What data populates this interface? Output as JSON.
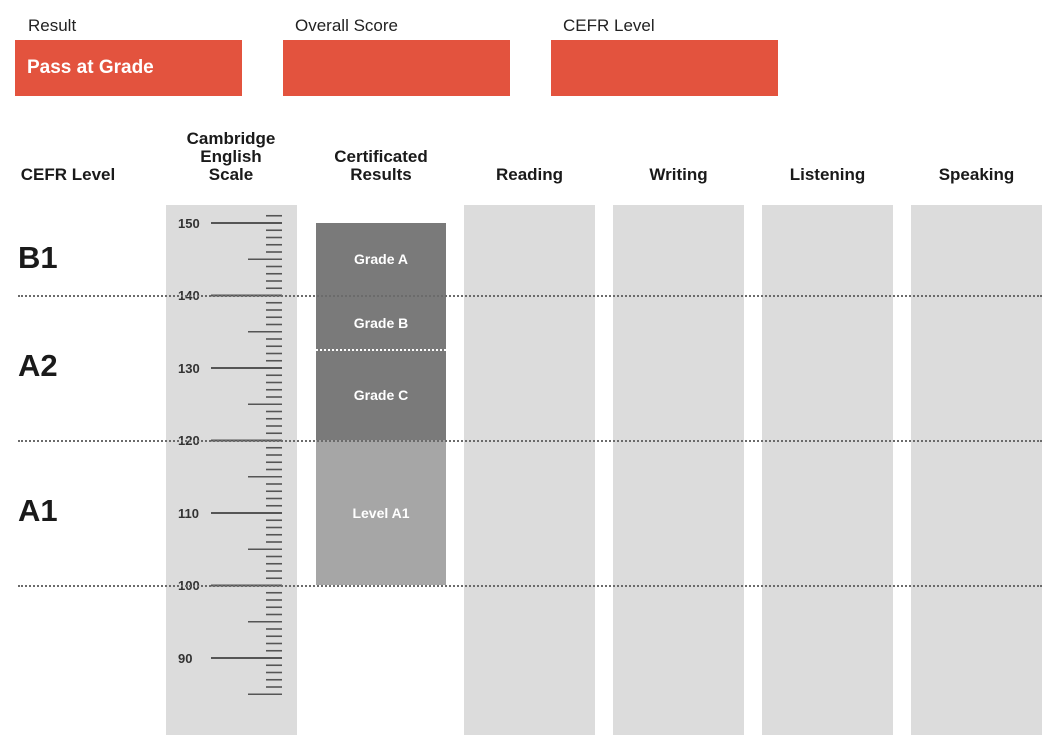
{
  "summary": {
    "result_label": "Result",
    "result_value": "Pass at Grade",
    "score_label": "Overall Score",
    "score_value": "",
    "cefr_label": "CEFR Level",
    "cefr_value": ""
  },
  "headers": {
    "cefr_level": "CEFR Level",
    "scale_line1": "Cambridge",
    "scale_line2": "English",
    "scale_line3": "Scale",
    "certificated_line1": "Certificated",
    "certificated_line2": "Results",
    "reading": "Reading",
    "writing": "Writing",
    "listening": "Listening",
    "speaking": "Speaking"
  },
  "cefr_levels": [
    "B1",
    "A2",
    "A1"
  ],
  "scale": {
    "labels": [
      "150",
      "140",
      "130",
      "120",
      "110",
      "100",
      "90"
    ]
  },
  "grades": {
    "grade_a": "Grade A",
    "grade_b": "Grade B",
    "grade_c": "Grade C",
    "level_a1": "Level A1"
  },
  "colors": {
    "accent_red": "#e3533e",
    "panel_gray": "#dcdcdc",
    "grade_dark": "#7a7a7a",
    "grade_light": "#a6a6a6"
  }
}
